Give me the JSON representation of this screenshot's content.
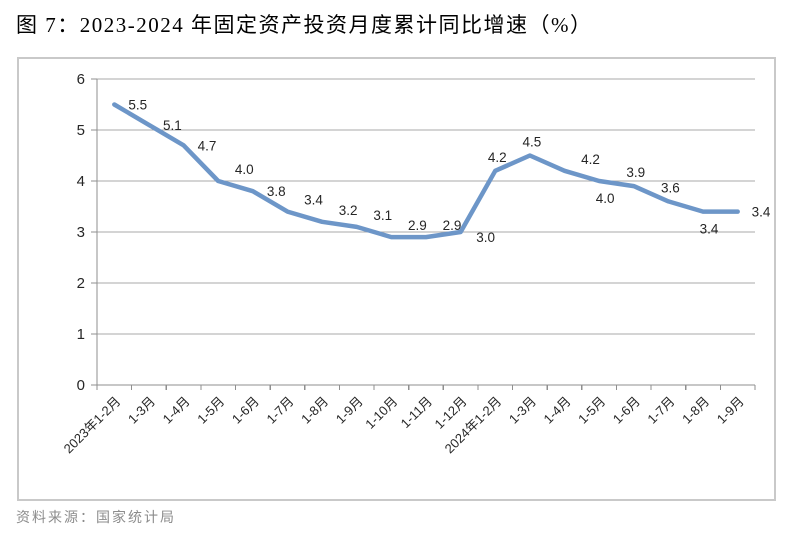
{
  "title": "图 7：2023-2024 年固定资产投资月度累计同比增速（%）",
  "source": "资料来源：国家统计局",
  "colors": {
    "line": "#6d96c8",
    "gridline": "#a9a9a9",
    "axis": "#8f8f8f",
    "text": "#262626",
    "border": "#c9c9c9",
    "source_text": "#8c8c8c"
  },
  "chart_data": {
    "type": "line",
    "title": "图 7：2023-2024 年固定资产投资月度累计同比增速（%）",
    "xlabel": "",
    "ylabel": "",
    "categories": [
      "2023年1-2月",
      "1-3月",
      "1-4月",
      "1-5月",
      "1-6月",
      "1-7月",
      "1-8月",
      "1-9月",
      "1-10月",
      "1-11月",
      "1-12月",
      "2024年1-2月",
      "1-3月",
      "1-4月",
      "1-5月",
      "1-6月",
      "1-7月",
      "1-8月",
      "1-9月"
    ],
    "series": [
      {
        "name": "固定资产投资月度累计同比增速",
        "values": [
          5.5,
          5.1,
          4.7,
          4.0,
          3.8,
          3.4,
          3.2,
          3.1,
          2.9,
          2.9,
          3.0,
          4.2,
          4.5,
          4.2,
          4.0,
          3.9,
          3.6,
          3.4,
          3.4
        ]
      }
    ],
    "data_labels": true,
    "label_placements": [
      "right",
      "right",
      "right",
      "above-right",
      "right",
      "above-right",
      "above-right",
      "above-right",
      "above-right",
      "above-right",
      "below-right",
      "above",
      "above",
      "above-right",
      "below",
      "above",
      "above",
      "below",
      "right"
    ],
    "ylim": [
      0,
      6
    ],
    "ytick_interval": 1,
    "yticks": [
      "0",
      "1",
      "2",
      "3",
      "4",
      "5",
      "6"
    ],
    "grid": true,
    "legend": false,
    "xlabel_rotation": -45
  }
}
